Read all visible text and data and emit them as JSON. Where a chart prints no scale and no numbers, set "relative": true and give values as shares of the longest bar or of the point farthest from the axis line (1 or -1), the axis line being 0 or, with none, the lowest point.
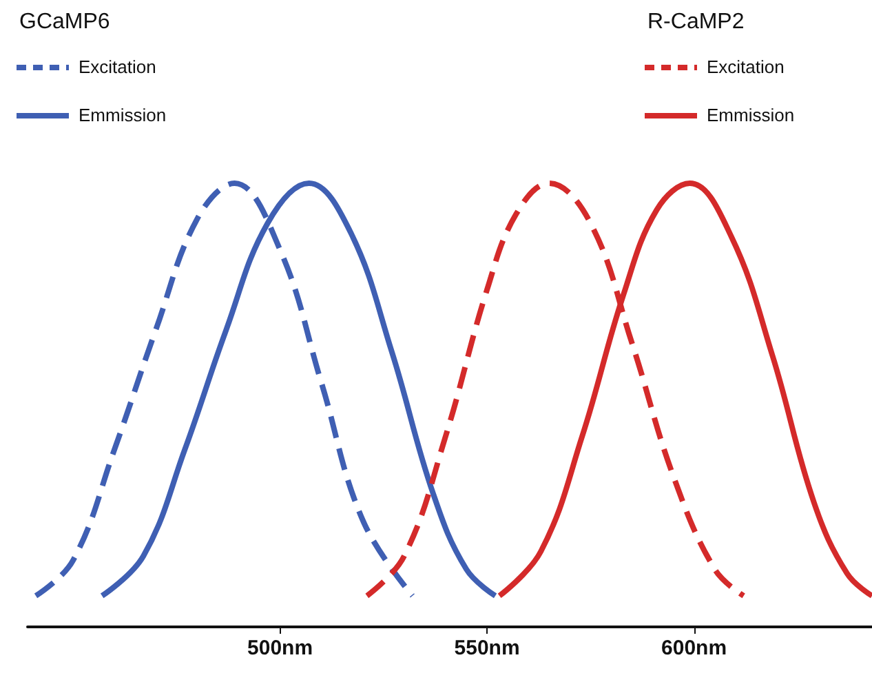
{
  "chart_data": {
    "type": "line",
    "relative": true,
    "xlim": [
      439,
      643
    ],
    "xticks": [
      {
        "value": 500,
        "label": "500nm"
      },
      {
        "value": 550,
        "label": "550nm"
      },
      {
        "value": 600,
        "label": "600nm"
      }
    ],
    "annotations": [
      "GCaMP6",
      "R-CaMP2"
    ],
    "legend": "top",
    "grid": false,
    "marker": "none",
    "series": [
      {
        "name": "Excitation",
        "color": "#3f5fb3",
        "line_style": "dashed",
        "x": [
          441,
          450,
          460,
          470,
          480,
          489,
          500,
          510,
          520,
          532
        ],
        "values": [
          0.07,
          0.15,
          0.4,
          0.67,
          0.92,
          1,
          0.85,
          0.55,
          0.24,
          0.07
        ]
      },
      {
        "name": "Emmission",
        "color": "#3f5fb3",
        "line_style": "solid",
        "x": [
          457,
          467,
          477,
          487,
          497,
          507,
          517,
          527,
          537,
          545,
          552
        ],
        "values": [
          0.07,
          0.16,
          0.4,
          0.67,
          0.91,
          1,
          0.89,
          0.62,
          0.3,
          0.13,
          0.07
        ]
      },
      {
        "name": "Excitation",
        "color": "#d42a2a",
        "line_style": "dashed",
        "x": [
          521,
          530,
          540,
          550,
          557,
          565,
          575,
          585,
          595,
          605,
          612
        ],
        "values": [
          0.07,
          0.16,
          0.43,
          0.76,
          0.93,
          1,
          0.91,
          0.64,
          0.34,
          0.13,
          0.07
        ]
      },
      {
        "name": "Emmission",
        "color": "#d42a2a",
        "line_style": "solid",
        "x": [
          553,
          563,
          573,
          583,
          591,
          599,
          609,
          619,
          629,
          637,
          643
        ],
        "values": [
          0.07,
          0.17,
          0.43,
          0.75,
          0.94,
          1,
          0.88,
          0.61,
          0.28,
          0.12,
          0.07
        ]
      }
    ]
  }
}
